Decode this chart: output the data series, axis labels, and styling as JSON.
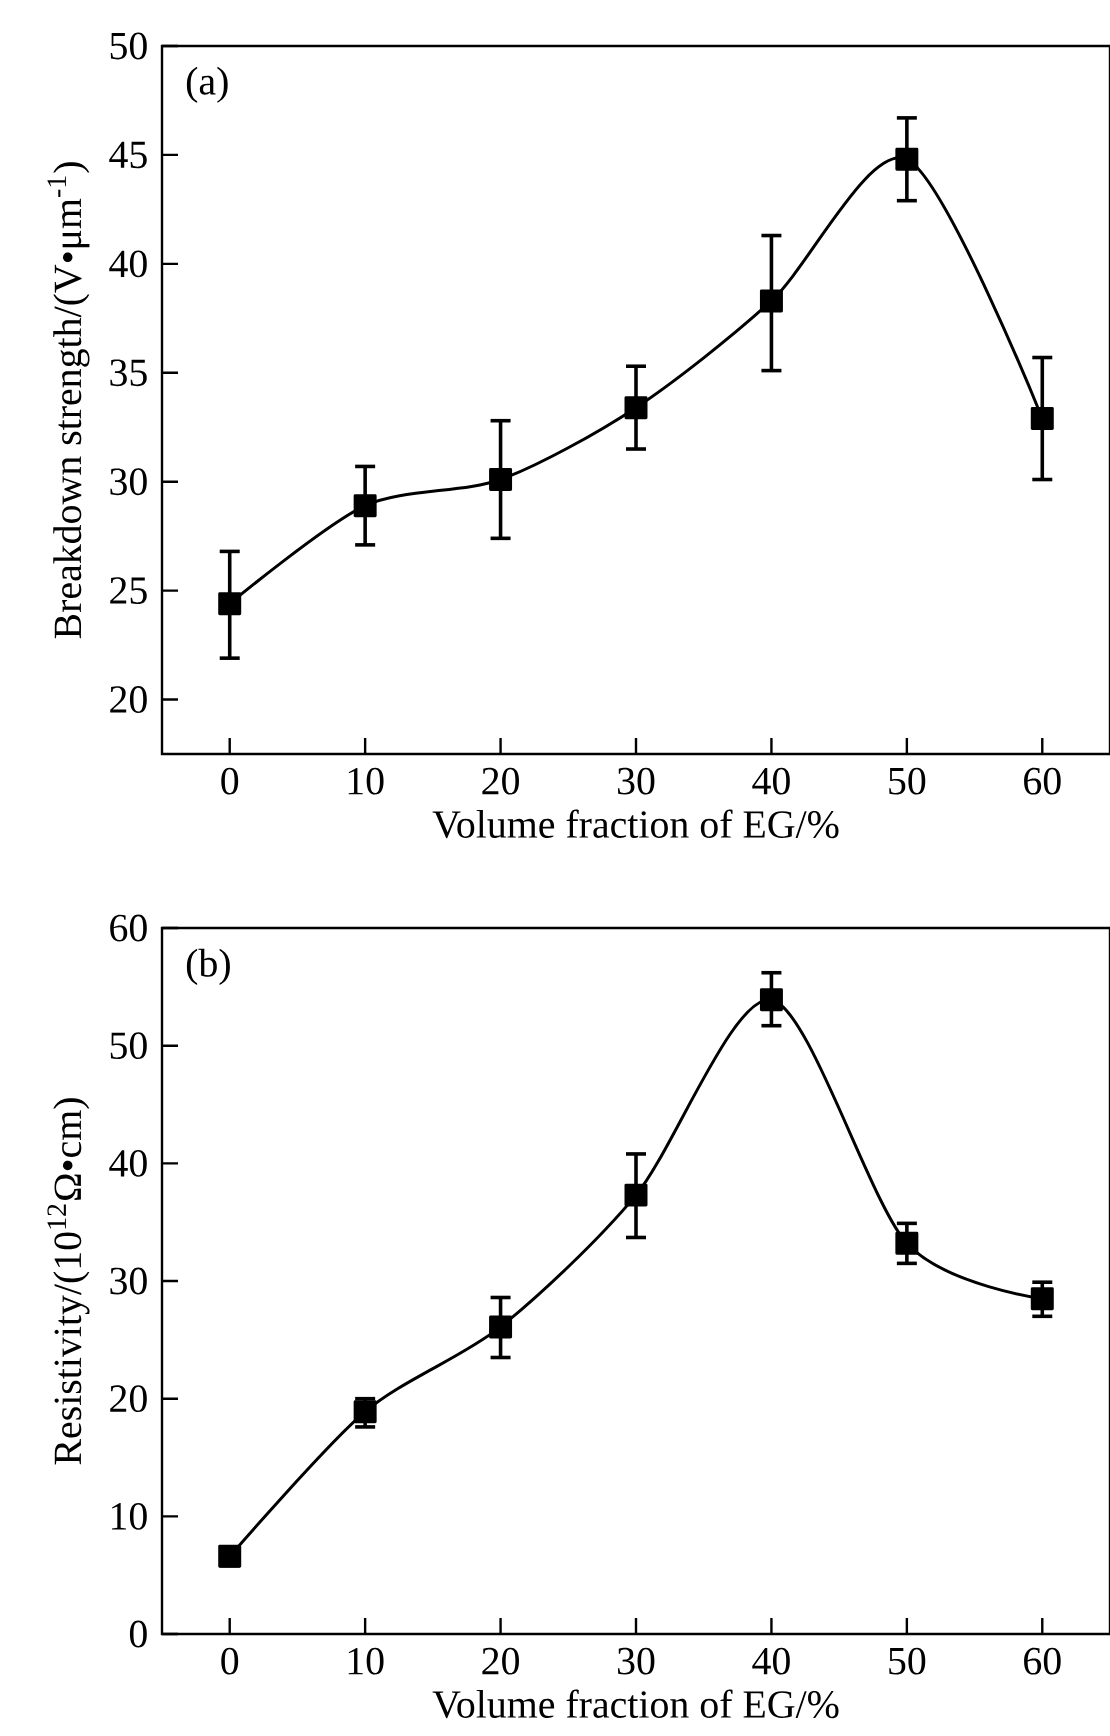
{
  "chart_data": [
    {
      "type": "line",
      "xlabel": "Volume fraction of EG/%",
      "ylabel": "Breakdown strength/(V•μm$^{-1}$)",
      "annotations": [
        "(a)"
      ],
      "x": [
        0,
        10,
        20,
        30,
        40,
        50,
        60
      ],
      "values": [
        24.4,
        28.9,
        30.1,
        33.4,
        38.3,
        44.8,
        32.9
      ],
      "errors": [
        [
          21.9,
          26.8
        ],
        [
          27.1,
          30.7
        ],
        [
          27.4,
          32.8
        ],
        [
          31.5,
          35.3
        ],
        [
          35.1,
          41.3
        ],
        [
          42.9,
          46.7
        ],
        [
          30.1,
          35.7
        ]
      ],
      "color": "#000000",
      "marker": "square",
      "line_style": "solid",
      "xlim": [
        -5,
        65
      ],
      "ylim": [
        17.5,
        50
      ],
      "xticks": [
        0,
        10,
        20,
        30,
        40,
        50,
        60
      ],
      "yticks": [
        20,
        25,
        30,
        35,
        40,
        45,
        50
      ]
    },
    {
      "type": "line",
      "xlabel": "Volume fraction of EG/%",
      "ylabel": "Resistivity/(10$^{12}$Ω•cm)",
      "annotations": [
        "(b)"
      ],
      "x": [
        0,
        10,
        20,
        30,
        40,
        50,
        60
      ],
      "values": [
        6.6,
        18.9,
        26.1,
        37.3,
        53.9,
        33.2,
        28.5
      ],
      "errors": [
        [
          5.8,
          7.4
        ],
        [
          17.6,
          20.0
        ],
        [
          23.5,
          28.6
        ],
        [
          33.7,
          40.8
        ],
        [
          51.7,
          56.2
        ],
        [
          31.5,
          34.9
        ],
        [
          27.0,
          29.9
        ]
      ],
      "color": "#000000",
      "marker": "square",
      "line_style": "solid",
      "xlim": [
        -5,
        65
      ],
      "ylim": [
        0,
        60
      ],
      "xticks": [
        0,
        10,
        20,
        30,
        40,
        50,
        60
      ],
      "yticks": [
        0,
        10,
        20,
        30,
        40,
        50,
        60
      ]
    }
  ]
}
